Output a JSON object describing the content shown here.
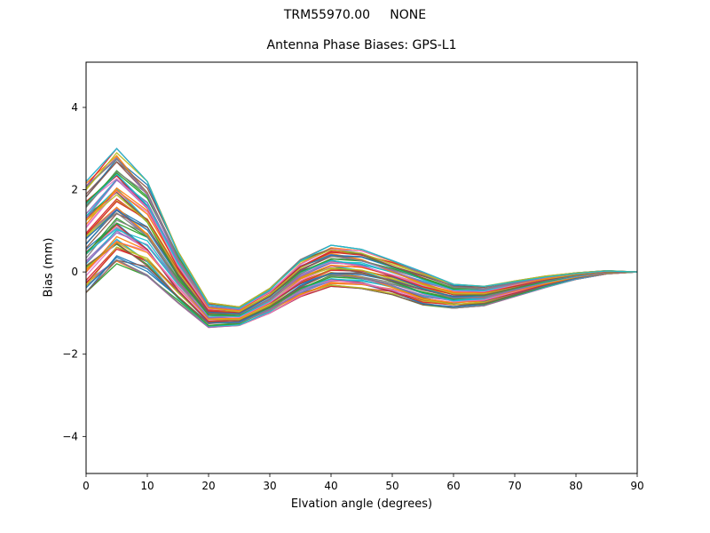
{
  "figure": {
    "suptitle": "TRM55970.00     NONE"
  },
  "chart_data": {
    "type": "line",
    "title": "Antenna Phase Biases: GPS-L1",
    "xlabel": "Elvation angle (degrees)",
    "ylabel": "Bias (mm)",
    "xlim": [
      0,
      90
    ],
    "ylim": [
      -4.9,
      5.1
    ],
    "xticks": [
      0,
      10,
      20,
      30,
      40,
      50,
      60,
      70,
      80,
      90
    ],
    "xtick_labels": [
      "0",
      "10",
      "20",
      "30",
      "40",
      "50",
      "60",
      "70",
      "80",
      "90"
    ],
    "yticks": [
      -4,
      -2,
      0,
      2,
      4
    ],
    "ytick_labels": [
      "−4",
      "−2",
      "0",
      "2",
      "4"
    ],
    "grid": false,
    "legend": false,
    "x": [
      0,
      5,
      10,
      15,
      20,
      25,
      30,
      35,
      40,
      45,
      50,
      55,
      60,
      65,
      70,
      75,
      80,
      85,
      90
    ],
    "ensemble": {
      "count": 70,
      "mean": [
        0.85,
        1.6,
        1.05,
        -0.13,
        -1.05,
        -1.08,
        -0.7,
        -0.15,
        0.15,
        0.08,
        -0.14,
        -0.4,
        -0.59,
        -0.59,
        -0.41,
        -0.24,
        -0.1,
        -0.01,
        0.0
      ],
      "lower": [
        -0.5,
        0.2,
        -0.1,
        -0.75,
        -1.35,
        -1.3,
        -1.0,
        -0.6,
        -0.35,
        -0.4,
        -0.55,
        -0.8,
        -0.88,
        -0.82,
        -0.6,
        -0.38,
        -0.18,
        -0.05,
        0.0
      ],
      "upper": [
        2.2,
        3.0,
        2.2,
        0.5,
        -0.75,
        -0.85,
        -0.4,
        0.3,
        0.65,
        0.55,
        0.28,
        0.0,
        -0.3,
        -0.35,
        -0.22,
        -0.1,
        -0.02,
        0.03,
        0.0
      ]
    },
    "colors": [
      "#1f77b4",
      "#ff7f0e",
      "#2ca02c",
      "#d62728",
      "#9467bd",
      "#8c564b",
      "#e377c2",
      "#7f7f7f",
      "#bcbd22",
      "#17becf"
    ]
  }
}
